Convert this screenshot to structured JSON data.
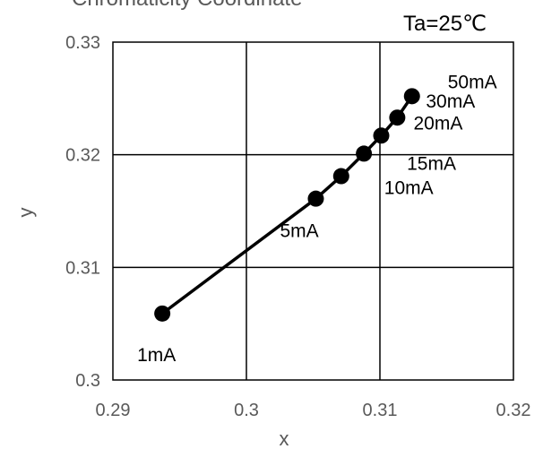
{
  "chart_data": {
    "type": "line",
    "title": "Chromaticity Coordinate",
    "condition": "Ta=25℃",
    "xlabel": "x",
    "ylabel": "y",
    "xlim": [
      0.29,
      0.32
    ],
    "ylim": [
      0.3,
      0.33
    ],
    "x_ticks": [
      "0.29",
      "0.3",
      "0.31",
      "0.32"
    ],
    "y_ticks": [
      "0.3",
      "0.31",
      "0.32",
      "0.33"
    ],
    "grid": true,
    "line_color": "#000000",
    "points": [
      {
        "label": "1mA",
        "x": 0.2937,
        "y": 0.3059
      },
      {
        "label": "5mA",
        "x": 0.3052,
        "y": 0.3161
      },
      {
        "label": "10mA",
        "x": 0.3071,
        "y": 0.3181
      },
      {
        "label": "15mA",
        "x": 0.3088,
        "y": 0.3201
      },
      {
        "label": "20mA",
        "x": 0.3101,
        "y": 0.3217
      },
      {
        "label": "30mA",
        "x": 0.3113,
        "y": 0.3233
      },
      {
        "label": "50mA",
        "x": 0.3124,
        "y": 0.3252
      }
    ]
  }
}
